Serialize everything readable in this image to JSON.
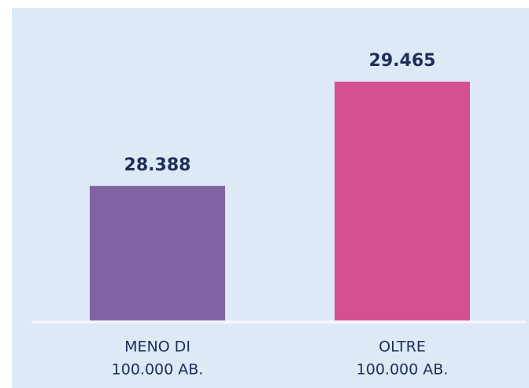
{
  "chart_data": {
    "type": "bar",
    "categories": [
      [
        "MENO DI",
        "100.000 AB."
      ],
      [
        "OLTRE",
        "100.000 AB."
      ]
    ],
    "values": [
      28388,
      29465
    ],
    "value_labels": [
      "28.388",
      "29.465"
    ],
    "colors": [
      "#8064a2",
      "#d55091"
    ],
    "ylim": [
      27000,
      30000
    ]
  }
}
